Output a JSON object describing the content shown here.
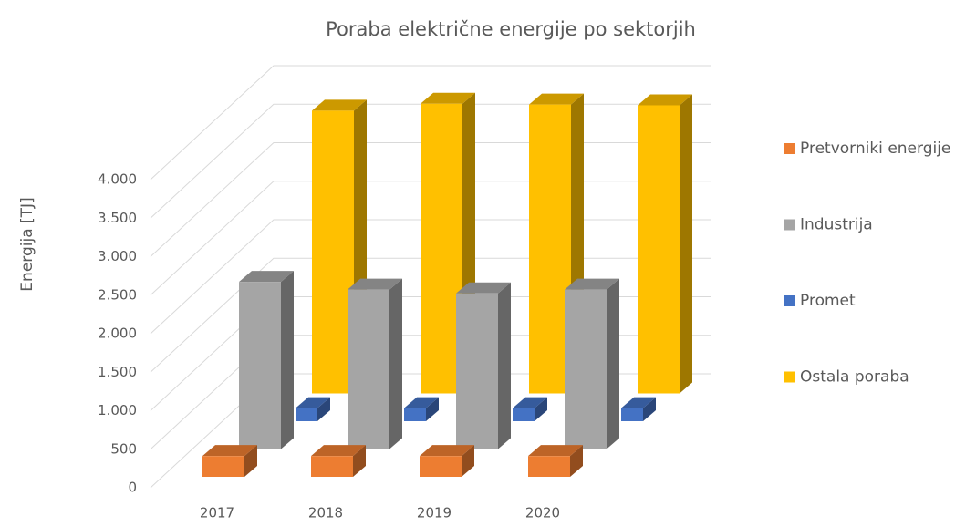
{
  "chart_data": {
    "type": "bar3d",
    "title": "Poraba električne energije po sektorjih",
    "y_label": "Energija [TJ]",
    "categories": [
      "2017",
      "2018",
      "2019",
      "2020"
    ],
    "series": [
      {
        "name": "Pretvorniki energije",
        "color": "#ed7d31",
        "values": [
          270,
          270,
          270,
          270
        ]
      },
      {
        "name": "Industrija",
        "color": "#a5a5a5",
        "values": [
          2170,
          2070,
          2020,
          2070
        ]
      },
      {
        "name": "Promet",
        "color": "#4472c4",
        "values": [
          170,
          170,
          170,
          170
        ]
      },
      {
        "name": "Ostala poraba",
        "color": "#ffc000",
        "values": [
          3670,
          3760,
          3750,
          3740
        ]
      }
    ],
    "ylim": [
      0,
      4000
    ],
    "yticks": [
      0,
      500,
      {
        "value": 1000,
        "label": "1.000"
      },
      {
        "value": 1500,
        "label": "1.500"
      },
      {
        "value": 2000,
        "label": "2.000"
      },
      {
        "value": 2500,
        "label": "2.500"
      },
      {
        "value": 3000,
        "label": "3.000"
      },
      {
        "value": 3500,
        "label": "3.500"
      },
      {
        "value": 4000,
        "label": "4.000"
      }
    ],
    "grid": true,
    "legend": "right"
  }
}
